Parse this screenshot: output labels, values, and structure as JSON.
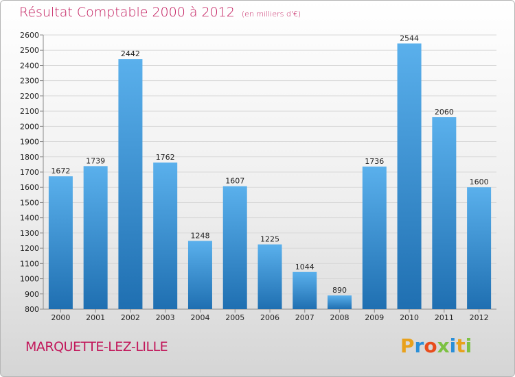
{
  "title": "Résultat Comptable 2000 à 2012",
  "subtitle": "(en milliers d'€)",
  "city": "MARQUETTE-LEZ-LILLE",
  "logo": {
    "letters": [
      "P",
      "r",
      "o",
      "x",
      "i",
      "t",
      "i"
    ],
    "colors": [
      "#e8a11c",
      "#2a8fd8",
      "#e84c1c",
      "#7cc142",
      "#2a8fd8",
      "#e8a11c",
      "#7cc142"
    ]
  },
  "colors": {
    "bar_top": "#5ab0ec",
    "bar_bottom": "#1f6fb1",
    "title": "#c2185b"
  },
  "chart_data": {
    "type": "bar",
    "title": "Résultat Comptable 2000 à 2012",
    "categories": [
      "2000",
      "2001",
      "2002",
      "2003",
      "2004",
      "2005",
      "2006",
      "2007",
      "2008",
      "2009",
      "2010",
      "2011",
      "2012"
    ],
    "values": [
      1672,
      1739,
      2442,
      1762,
      1248,
      1607,
      1225,
      1044,
      890,
      1736,
      2544,
      2060,
      1600
    ],
    "value_labels": [
      "1672",
      "1739",
      "2442",
      "1762",
      "1248",
      "1607",
      "1225",
      "1044",
      "890",
      "1736",
      "2544",
      "2060",
      "1600"
    ],
    "ylim": [
      800,
      2600
    ],
    "yticks": [
      800,
      900,
      1000,
      1100,
      1200,
      1300,
      1400,
      1500,
      1600,
      1700,
      1800,
      1900,
      2000,
      2100,
      2200,
      2300,
      2400,
      2500,
      2600
    ],
    "ytick_labels": [
      "800",
      "900",
      "1000",
      "1100",
      "1200",
      "1300",
      "1400",
      "1500",
      "1600",
      "1700",
      "1800",
      "1900",
      "2000",
      "2100",
      "2200",
      "2300",
      "2400",
      "2500",
      "2600"
    ],
    "grid": true,
    "xlabel": "",
    "ylabel": ""
  }
}
